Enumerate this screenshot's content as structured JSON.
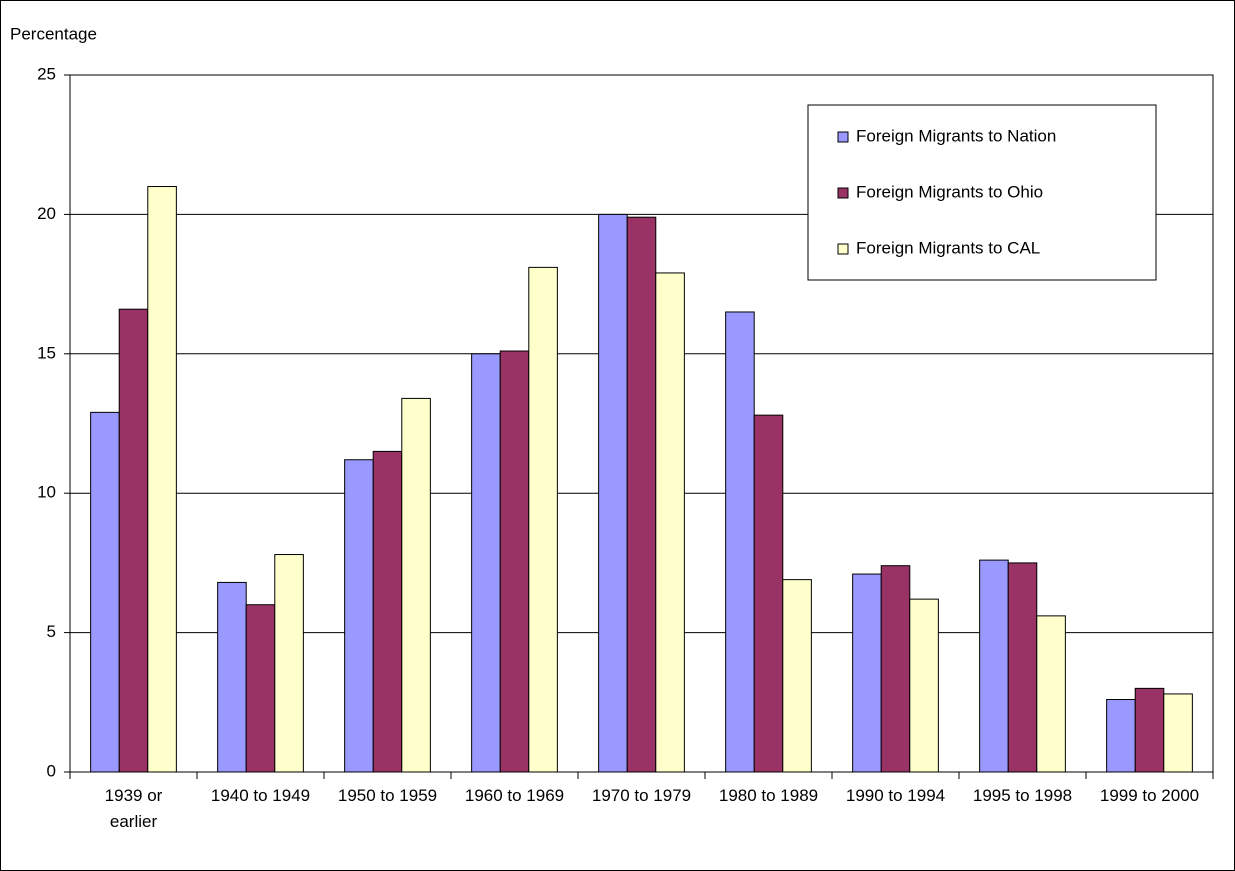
{
  "chart_data": {
    "type": "bar",
    "y_label": "Percentage",
    "categories": [
      "1939 or earlier",
      "1940 to 1949",
      "1950 to 1959",
      "1960 to 1969",
      "1970 to 1979",
      "1980 to 1989",
      "1990 to 1994",
      "1995 to 1998",
      "1999 to 2000"
    ],
    "series": [
      {
        "name": "Foreign Migrants to Nation",
        "color": "#9999ff",
        "values": [
          12.9,
          6.8,
          11.2,
          15.0,
          20.0,
          16.5,
          7.1,
          7.6,
          2.6
        ]
      },
      {
        "name": "Foreign Migrants to Ohio",
        "color": "#993366",
        "values": [
          16.6,
          6.0,
          11.5,
          15.1,
          19.9,
          12.8,
          7.4,
          7.5,
          3.0
        ]
      },
      {
        "name": "Foreign Migrants to CAL",
        "color": "#ffffcc",
        "values": [
          21.0,
          7.8,
          13.4,
          18.1,
          17.9,
          6.9,
          6.2,
          5.6,
          2.8
        ]
      }
    ],
    "ylim": [
      0,
      25
    ],
    "yticks": [
      0,
      5,
      10,
      15,
      20,
      25
    ],
    "grid": true,
    "legend": "top-right"
  }
}
